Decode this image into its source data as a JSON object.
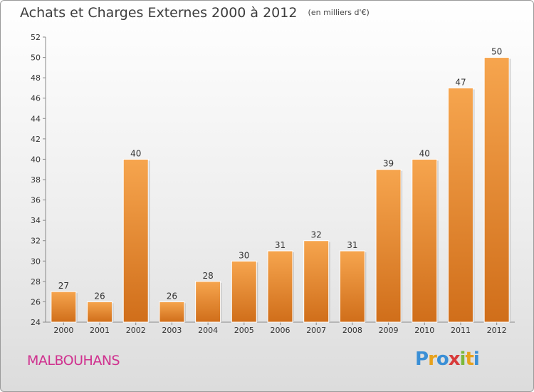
{
  "header": {
    "title": "Achats et Charges Externes 2000 à 2012",
    "subtitle": "(en milliers d'€)"
  },
  "footer": {
    "town": "MALBOUHANS",
    "logo_letters": [
      "P",
      "r",
      "o",
      "x",
      "i",
      "t",
      "i"
    ],
    "logo_colors": [
      "#3a8fd6",
      "#e8a21c",
      "#3a8fd6",
      "#d83a3a",
      "#7cb83a",
      "#e8a21c",
      "#3a8fd6"
    ]
  },
  "chart_data": {
    "type": "bar",
    "title": "Achats et Charges Externes 2000 à 2012",
    "subtitle": "(en milliers d'€)",
    "categories": [
      "2000",
      "2001",
      "2002",
      "2003",
      "2004",
      "2005",
      "2006",
      "2007",
      "2008",
      "2009",
      "2010",
      "2011",
      "2012"
    ],
    "values": [
      27,
      26,
      40,
      26,
      28,
      30,
      31,
      32,
      31,
      39,
      40,
      47,
      50
    ],
    "ylim": [
      24,
      52
    ],
    "yticks": [
      24,
      26,
      28,
      30,
      32,
      34,
      36,
      38,
      40,
      42,
      44,
      46,
      48,
      50,
      52
    ],
    "grid": false,
    "bar_color_top": "#f6a54e",
    "bar_color_bottom": "#d06e1a"
  }
}
